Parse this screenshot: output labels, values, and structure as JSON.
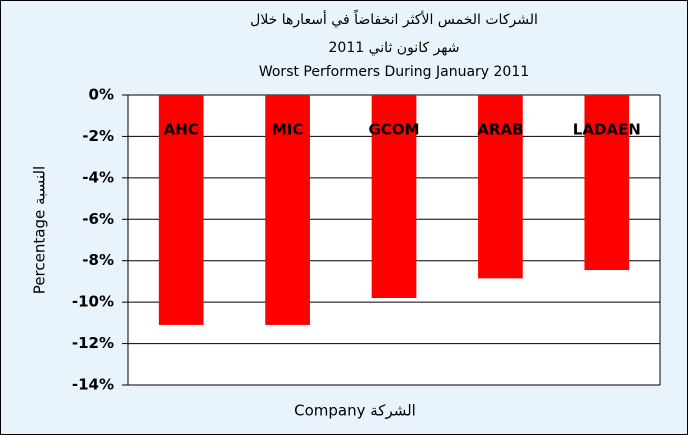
{
  "chart_data": {
    "type": "bar",
    "title": [
      "الشركات الخمس الأكثر انخفاضاً في أسعارها خلال",
      "شهر كانون ثاني 2011",
      "Worst Performers During January 2011"
    ],
    "x_label": "Company الشركة",
    "y_label": "Percentage النسبة",
    "categories": [
      "AHC",
      "MIC",
      "GCOM",
      "ARAB",
      "LADAEN"
    ],
    "values": [
      -11.1,
      -11.1,
      -9.8,
      -8.85,
      -8.45
    ],
    "color": "#ff0000",
    "ylim": [
      -14,
      0
    ],
    "yticks": [
      {
        "value": 0,
        "label": "0%"
      },
      {
        "value": -2,
        "label": "-2%"
      },
      {
        "value": -4,
        "label": "-4%"
      },
      {
        "value": -6,
        "label": "-6%"
      },
      {
        "value": -8,
        "label": "-8%"
      },
      {
        "value": -10,
        "label": "-10%"
      },
      {
        "value": -12,
        "label": "-12%"
      },
      {
        "value": -14,
        "label": "-14%"
      }
    ],
    "grid": true
  }
}
